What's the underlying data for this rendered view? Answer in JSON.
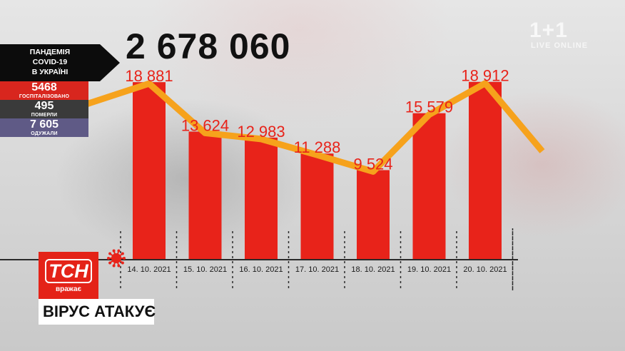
{
  "broadcast": {
    "total_cases": "2 678 060",
    "panel_title_lines": [
      "ПАНДЕМІЯ",
      "COVID-19",
      "В УКРАЇНІ"
    ],
    "stats": {
      "hospitalized": {
        "value": "5468",
        "label": "ГОСПІТАЛІЗОВАНО",
        "color": "#d8261e"
      },
      "deaths": {
        "value": "495",
        "label": "ПОМЕРЛИ",
        "color": "#3a3a3a"
      },
      "recovered": {
        "value": "7 605",
        "label": "ОДУЖАЛИ",
        "color": "#5f5a86"
      }
    },
    "channel_logo": {
      "brand": "ТСН",
      "sub": "вражає"
    },
    "caption": "ВІРУС АТАКУЄ",
    "watermark": "1+1",
    "watermark_sub": "LIVE ONLINE",
    "virus_icon": "virus-icon"
  },
  "chart_data": {
    "type": "bar",
    "categories": [
      "14. 10. 2021",
      "15. 10. 2021",
      "16. 10. 2021",
      "17. 10. 2021",
      "18. 10. 2021",
      "19. 10. 2021",
      "20. 10. 2021"
    ],
    "series": [
      {
        "values": [
          18881,
          13624,
          12983,
          11288,
          9524,
          15579,
          18912
        ]
      }
    ],
    "data_labels": [
      "18 881",
      "13 624",
      "12 983",
      "11 288",
      "9 524",
      "15 579",
      "18 912"
    ],
    "overlay_line": "trend line through bar tops (orange)",
    "ylim": [
      0,
      19500
    ],
    "grid": false,
    "title": "",
    "xlabel": "",
    "ylabel": "",
    "colors": {
      "bar": "#e8231a",
      "line": "#f6a21c",
      "label": "#e8231a",
      "axis": "#2a2a2a"
    }
  }
}
